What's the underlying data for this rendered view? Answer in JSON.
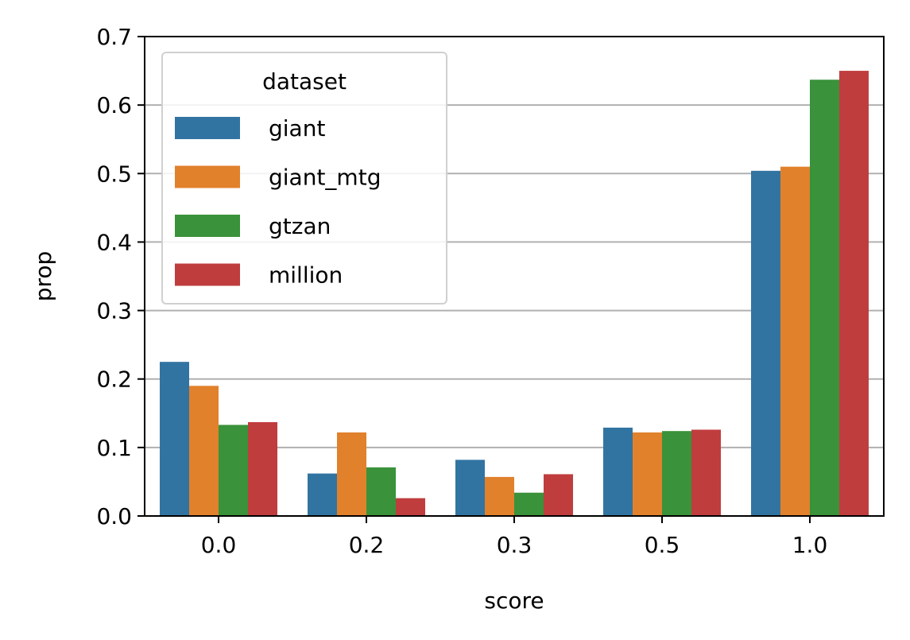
{
  "chart_data": {
    "type": "bar",
    "title": "",
    "xlabel": "score",
    "ylabel": "prop",
    "categories": [
      "0.0",
      "0.2",
      "0.3",
      "0.5",
      "1.0"
    ],
    "ylim": [
      0,
      0.7
    ],
    "yticks": [
      "0.0",
      "0.1",
      "0.2",
      "0.3",
      "0.4",
      "0.5",
      "0.6",
      "0.7"
    ],
    "grid": "y",
    "legend": {
      "title": "dataset",
      "placement": "top-left"
    },
    "series": [
      {
        "name": "giant",
        "color": "#3274a1",
        "values": [
          0.225,
          0.062,
          0.082,
          0.129,
          0.504
        ]
      },
      {
        "name": "giant_mtg",
        "color": "#e1812c",
        "values": [
          0.19,
          0.122,
          0.057,
          0.122,
          0.51
        ]
      },
      {
        "name": "gtzan",
        "color": "#3a923a",
        "values": [
          0.133,
          0.071,
          0.034,
          0.124,
          0.637
        ]
      },
      {
        "name": "million",
        "color": "#c03d3e",
        "values": [
          0.137,
          0.026,
          0.061,
          0.126,
          0.65
        ]
      }
    ]
  }
}
